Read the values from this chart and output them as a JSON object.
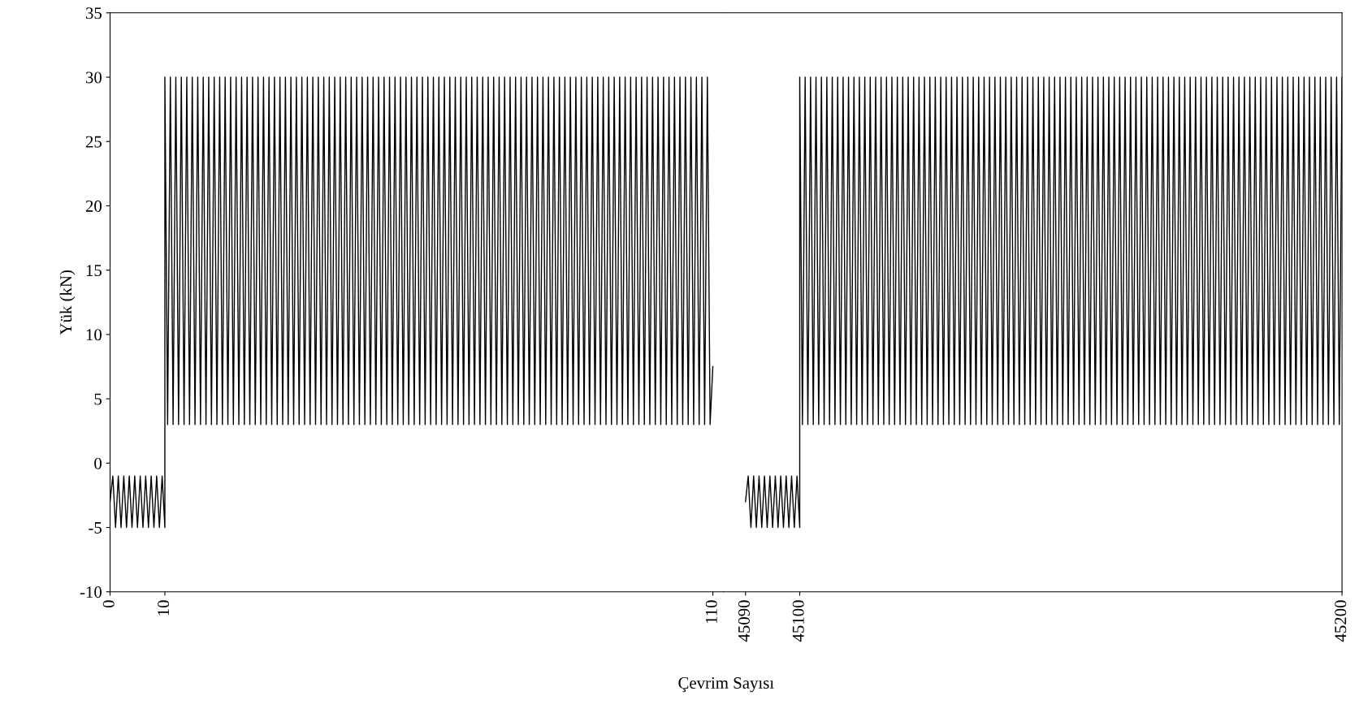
{
  "chart_data": [
    {
      "type": "line",
      "ylabel": "Yük (kN)",
      "xlabel": "Çevrim Sayısı",
      "xlim": [
        0,
        112
      ],
      "xticks": [
        0,
        10,
        110
      ],
      "ylim": [
        -10,
        35
      ],
      "yticks": [
        -10,
        -5,
        0,
        5,
        10,
        15,
        20,
        25,
        30,
        35
      ],
      "grid": false,
      "legend": false,
      "series": [
        {
          "color": "#000000",
          "x": [
            0,
            0.5,
            1,
            1.5,
            2,
            2.5,
            3,
            3.5,
            4,
            4.5,
            5,
            5.5,
            6,
            6.5,
            7,
            7.5,
            8,
            8.5,
            9,
            9.5,
            10,
            10,
            10.5,
            11,
            11.5,
            12,
            12.5,
            13,
            13.5,
            14,
            14.5,
            15,
            15.5,
            16,
            16.5,
            17,
            17.5,
            18,
            18.5,
            19,
            19.5,
            20,
            20.5,
            21,
            21.5,
            22,
            22.5,
            23,
            23.5,
            24,
            24.5,
            25,
            25.5,
            26,
            26.5,
            27,
            27.5,
            28,
            28.5,
            29,
            29.5,
            30,
            30.5,
            31,
            31.5,
            32,
            32.5,
            33,
            33.5,
            34,
            34.5,
            35,
            35.5,
            36,
            36.5,
            37,
            37.5,
            38,
            38.5,
            39,
            39.5,
            40,
            40.5,
            41,
            41.5,
            42,
            42.5,
            43,
            43.5,
            44,
            44.5,
            45,
            45.5,
            46,
            46.5,
            47,
            47.5,
            48,
            48.5,
            49,
            49.5,
            50,
            50.5,
            51,
            51.5,
            52,
            52.5,
            53,
            53.5,
            54,
            54.5,
            55,
            55.5,
            56,
            56.5,
            57,
            57.5,
            58,
            58.5,
            59,
            59.5,
            60,
            60.5,
            61,
            61.5,
            62,
            62.5,
            63,
            63.5,
            64,
            64.5,
            65,
            65.5,
            66,
            66.5,
            67,
            67.5,
            68,
            68.5,
            69,
            69.5,
            70,
            70.5,
            71,
            71.5,
            72,
            72.5,
            73,
            73.5,
            74,
            74.5,
            75,
            75.5,
            76,
            76.5,
            77,
            77.5,
            78,
            78.5,
            79,
            79.5,
            80,
            80.5,
            81,
            81.5,
            82,
            82.5,
            83,
            83.5,
            84,
            84.5,
            85,
            85.5,
            86,
            86.5,
            87,
            87.5,
            88,
            88.5,
            89,
            89.5,
            90,
            90.5,
            91,
            91.5,
            92,
            92.5,
            93,
            93.5,
            94,
            94.5,
            95,
            95.5,
            96,
            96.5,
            97,
            97.5,
            98,
            98.5,
            99,
            99.5,
            100,
            100.5,
            101,
            101.5,
            102,
            102.5,
            103,
            103.5,
            104,
            104.5,
            105,
            105.5,
            106,
            106.5,
            107,
            107.5,
            108,
            108.5,
            109,
            109.5,
            110
          ],
          "values": [
            -3,
            -1,
            -5,
            -1,
            -5,
            -1,
            -5,
            -1,
            -5,
            -1,
            -5,
            -1,
            -5,
            -1,
            -5,
            -1,
            -5,
            -1,
            -5,
            -1,
            -5,
            30,
            3,
            30,
            3,
            30,
            3,
            30,
            3,
            30,
            3,
            30,
            3,
            30,
            3,
            30,
            3,
            30,
            3,
            30,
            3,
            30,
            3,
            30,
            3,
            30,
            3,
            30,
            3,
            30,
            3,
            30,
            3,
            30,
            3,
            30,
            3,
            30,
            3,
            30,
            3,
            30,
            3,
            30,
            3,
            30,
            3,
            30,
            3,
            30,
            3,
            30,
            3,
            30,
            3,
            30,
            3,
            30,
            3,
            30,
            3,
            30,
            3,
            30,
            3,
            30,
            3,
            30,
            3,
            30,
            3,
            30,
            3,
            30,
            3,
            30,
            3,
            30,
            3,
            30,
            3,
            30,
            3,
            30,
            3,
            30,
            3,
            30,
            3,
            30,
            3,
            30,
            3,
            30,
            3,
            30,
            3,
            30,
            3,
            30,
            3,
            30,
            3,
            30,
            3,
            30,
            3,
            30,
            3,
            30,
            3,
            30,
            3,
            30,
            3,
            30,
            3,
            30,
            3,
            30,
            3,
            30,
            3,
            30,
            3,
            30,
            3,
            30,
            3,
            30,
            3,
            30,
            3,
            30,
            3,
            30,
            3,
            30,
            3,
            30,
            3,
            30,
            3,
            30,
            3,
            30,
            3,
            30,
            3,
            30,
            3,
            30,
            3,
            30,
            3,
            30,
            3,
            30,
            3,
            30,
            3,
            30,
            3,
            30,
            3,
            30,
            3,
            30,
            3,
            30,
            3,
            30,
            3,
            30,
            3,
            30,
            3,
            30,
            3,
            30,
            3,
            30,
            3,
            30,
            3,
            30,
            3,
            30,
            3,
            30,
            3,
            30,
            3,
            30,
            3,
            30,
            3,
            30,
            3,
            30,
            3,
            7.5
          ]
        }
      ]
    },
    {
      "type": "line",
      "xlim": [
        45086,
        45200
      ],
      "xticks": [
        45090,
        45100,
        45200
      ],
      "ylim": [
        -10,
        35
      ],
      "tick_labels": "x",
      "grid": false,
      "legend": false,
      "series": [
        {
          "color": "#000000",
          "x": [
            45090,
            45090.5,
            45091,
            45091.5,
            45092,
            45092.5,
            45093,
            45093.5,
            45094,
            45094.5,
            45095,
            45095.5,
            45096,
            45096.5,
            45097,
            45097.5,
            45098,
            45098.5,
            45099,
            45099.5,
            45100,
            45100,
            45100.5,
            45101,
            45101.5,
            45102,
            45102.5,
            45103,
            45103.5,
            45104,
            45104.5,
            45105,
            45105.5,
            45106,
            45106.5,
            45107,
            45107.5,
            45108,
            45108.5,
            45109,
            45109.5,
            45110,
            45110.5,
            45111,
            45111.5,
            45112,
            45112.5,
            45113,
            45113.5,
            45114,
            45114.5,
            45115,
            45115.5,
            45116,
            45116.5,
            45117,
            45117.5,
            45118,
            45118.5,
            45119,
            45119.5,
            45120,
            45120.5,
            45121,
            45121.5,
            45122,
            45122.5,
            45123,
            45123.5,
            45124,
            45124.5,
            45125,
            45125.5,
            45126,
            45126.5,
            45127,
            45127.5,
            45128,
            45128.5,
            45129,
            45129.5,
            45130,
            45130.5,
            45131,
            45131.5,
            45132,
            45132.5,
            45133,
            45133.5,
            45134,
            45134.5,
            45135,
            45135.5,
            45136,
            45136.5,
            45137,
            45137.5,
            45138,
            45138.5,
            45139,
            45139.5,
            45140,
            45140.5,
            45141,
            45141.5,
            45142,
            45142.5,
            45143,
            45143.5,
            45144,
            45144.5,
            45145,
            45145.5,
            45146,
            45146.5,
            45147,
            45147.5,
            45148,
            45148.5,
            45149,
            45149.5,
            45150,
            45150.5,
            45151,
            45151.5,
            45152,
            45152.5,
            45153,
            45153.5,
            45154,
            45154.5,
            45155,
            45155.5,
            45156,
            45156.5,
            45157,
            45157.5,
            45158,
            45158.5,
            45159,
            45159.5,
            45160,
            45160.5,
            45161,
            45161.5,
            45162,
            45162.5,
            45163,
            45163.5,
            45164,
            45164.5,
            45165,
            45165.5,
            45166,
            45166.5,
            45167,
            45167.5,
            45168,
            45168.5,
            45169,
            45169.5,
            45170,
            45170.5,
            45171,
            45171.5,
            45172,
            45172.5,
            45173,
            45173.5,
            45174,
            45174.5,
            45175,
            45175.5,
            45176,
            45176.5,
            45177,
            45177.5,
            45178,
            45178.5,
            45179,
            45179.5,
            45180,
            45180.5,
            45181,
            45181.5,
            45182,
            45182.5,
            45183,
            45183.5,
            45184,
            45184.5,
            45185,
            45185.5,
            45186,
            45186.5,
            45187,
            45187.5,
            45188,
            45188.5,
            45189,
            45189.5,
            45190,
            45190.5,
            45191,
            45191.5,
            45192,
            45192.5,
            45193,
            45193.5,
            45194,
            45194.5,
            45195,
            45195.5,
            45196,
            45196.5,
            45197,
            45197.5,
            45198,
            45198.5,
            45199,
            45199.5,
            45200
          ],
          "values": [
            -3,
            -1,
            -5,
            -1,
            -5,
            -1,
            -5,
            -1,
            -5,
            -1,
            -5,
            -1,
            -5,
            -1,
            -5,
            -1,
            -5,
            -1,
            -5,
            -1,
            -5,
            30,
            3,
            30,
            3,
            30,
            3,
            30,
            3,
            30,
            3,
            30,
            3,
            30,
            3,
            30,
            3,
            30,
            3,
            30,
            3,
            30,
            3,
            30,
            3,
            30,
            3,
            30,
            3,
            30,
            3,
            30,
            3,
            30,
            3,
            30,
            3,
            30,
            3,
            30,
            3,
            30,
            3,
            30,
            3,
            30,
            3,
            30,
            3,
            30,
            3,
            30,
            3,
            30,
            3,
            30,
            3,
            30,
            3,
            30,
            3,
            30,
            3,
            30,
            3,
            30,
            3,
            30,
            3,
            30,
            3,
            30,
            3,
            30,
            3,
            30,
            3,
            30,
            3,
            30,
            3,
            30,
            3,
            30,
            3,
            30,
            3,
            30,
            3,
            30,
            3,
            30,
            3,
            30,
            3,
            30,
            3,
            30,
            3,
            30,
            3,
            30,
            3,
            30,
            3,
            30,
            3,
            30,
            3,
            30,
            3,
            30,
            3,
            30,
            3,
            30,
            3,
            30,
            3,
            30,
            3,
            30,
            3,
            30,
            3,
            30,
            3,
            30,
            3,
            30,
            3,
            30,
            3,
            30,
            3,
            30,
            3,
            30,
            3,
            30,
            3,
            30,
            3,
            30,
            3,
            30,
            3,
            30,
            3,
            30,
            3,
            30,
            3,
            30,
            3,
            30,
            3,
            30,
            3,
            30,
            3,
            30,
            3,
            30,
            3,
            30,
            3,
            30,
            3,
            30,
            3,
            30,
            3,
            30,
            3,
            30,
            3,
            30,
            3,
            30,
            3,
            30,
            3,
            30,
            3,
            30,
            3,
            30,
            3,
            30,
            3,
            30,
            3,
            30,
            3,
            30,
            3,
            30,
            3,
            30,
            3,
            30
          ]
        }
      ]
    }
  ]
}
